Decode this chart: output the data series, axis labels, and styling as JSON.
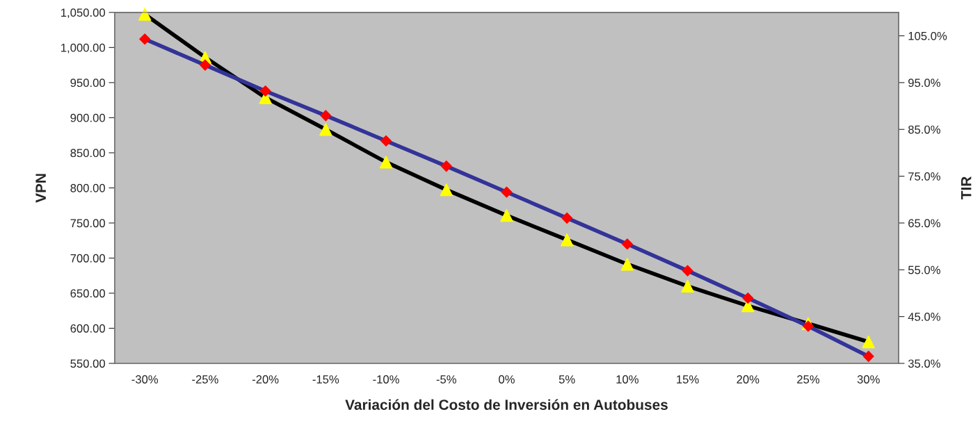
{
  "chart_data": {
    "type": "line",
    "xlabel": "Variación del Costo de Inversión en Autobuses",
    "ylabel": "VPN",
    "y2label": "TIR",
    "categories": [
      "-30%",
      "-25%",
      "-20%",
      "-15%",
      "-10%",
      "-5%",
      "0%",
      "5%",
      "10%",
      "15%",
      "20%",
      "25%",
      "30%"
    ],
    "series": [
      {
        "color": "#333399",
        "marker": "diamond",
        "values": [
          1012,
          975,
          938,
          903,
          867,
          831,
          794,
          757,
          720,
          682,
          643,
          603,
          560
        ]
      },
      {
        "color": "#000000",
        "marker": "triangle",
        "axis": "y2",
        "values": [
          109.6,
          100.4,
          91.8,
          85.0,
          78.0,
          72.1,
          66.6,
          61.4,
          56.2,
          51.5,
          47.3,
          43.5,
          39.6
        ]
      }
    ],
    "ylim": [
      550,
      1050
    ],
    "yticks": [
      {
        "value": 550,
        "label": "550.00"
      },
      {
        "value": 600,
        "label": "600.00"
      },
      {
        "value": 650,
        "label": "650.00"
      },
      {
        "value": 700,
        "label": "700.00"
      },
      {
        "value": 750,
        "label": "750.00"
      },
      {
        "value": 800,
        "label": "800.00"
      },
      {
        "value": 850,
        "label": "850.00"
      },
      {
        "value": 900,
        "label": "900.00"
      },
      {
        "value": 950,
        "label": "950.00"
      },
      {
        "value": 1000,
        "label": "1,000.00"
      },
      {
        "value": 1050,
        "label": "1,050.00"
      }
    ],
    "y2lim": [
      35,
      110
    ],
    "y2ticks": [
      {
        "value": 35,
        "label": "35.0%"
      },
      {
        "value": 45,
        "label": "45.0%"
      },
      {
        "value": 55,
        "label": "55.0%"
      },
      {
        "value": 65,
        "label": "65.0%"
      },
      {
        "value": 75,
        "label": "75.0%"
      },
      {
        "value": 85,
        "label": "85.0%"
      },
      {
        "value": 95,
        "label": "95.0%"
      },
      {
        "value": 105,
        "label": "105.0%"
      }
    ],
    "grid": false,
    "legend": false
  }
}
